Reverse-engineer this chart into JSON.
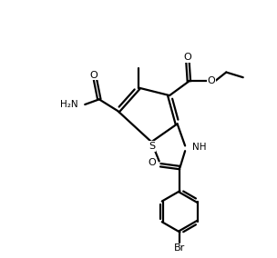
{
  "bg_color": "#ffffff",
  "line_color": "#000000",
  "line_width": 1.6,
  "fig_width": 3.04,
  "fig_height": 2.84,
  "dpi": 100,
  "xlim": [
    0,
    10
  ],
  "ylim": [
    0,
    10
  ]
}
